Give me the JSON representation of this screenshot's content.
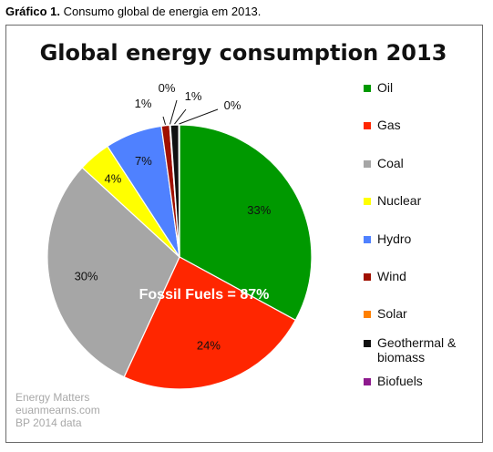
{
  "caption": {
    "label": "Gráfico 1.",
    "text": " Consumo global de energia em 2013."
  },
  "credits": [
    "Energy Matters",
    "euanmearns.com",
    "BP 2014 data"
  ],
  "chart_data": {
    "type": "pie",
    "title": "Global energy consumption 2013",
    "annotation": "Fossil Fuels = 87%",
    "legend_position": "right",
    "slices": [
      {
        "name": "Oil",
        "value": 33,
        "label": "33%",
        "color": "#009900"
      },
      {
        "name": "Gas",
        "value": 24,
        "label": "24%",
        "color": "#ff2600"
      },
      {
        "name": "Coal",
        "value": 30,
        "label": "30%",
        "color": "#a6a6a6"
      },
      {
        "name": "Nuclear",
        "value": 4,
        "label": "4%",
        "color": "#ffff00"
      },
      {
        "name": "Hydro",
        "value": 7,
        "label": "7%",
        "color": "#4f81ff"
      },
      {
        "name": "Wind",
        "value": 1,
        "label": "1%",
        "color": "#a01000"
      },
      {
        "name": "Solar",
        "value": 0.1,
        "label": "0%",
        "color": "#ff8000"
      },
      {
        "name": "Geothermal & biomass",
        "value": 1,
        "label": "1%",
        "color": "#111111"
      },
      {
        "name": "Biofuels",
        "value": 0.1,
        "label": "0%",
        "color": "#8e1a8e"
      }
    ]
  }
}
